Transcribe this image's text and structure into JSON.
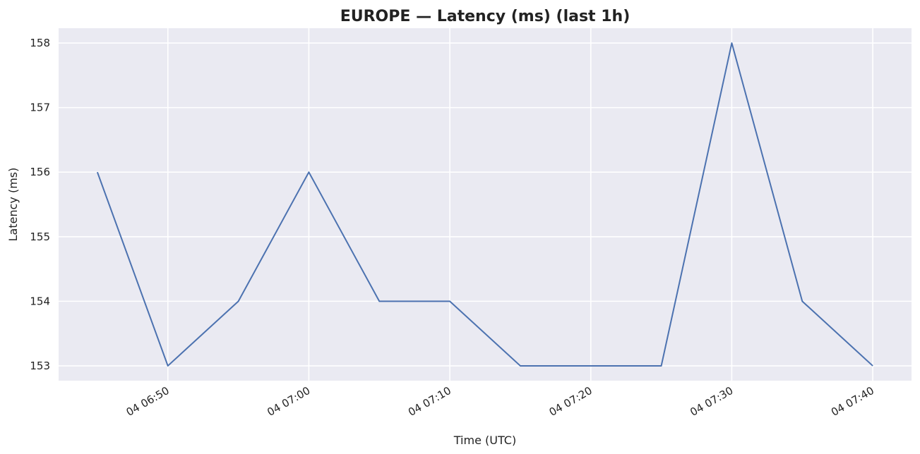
{
  "chart_data": {
    "type": "line",
    "title": "EUROPE — Latency (ms) (last 1h)",
    "xlabel": "Time (UTC)",
    "ylabel": "Latency (ms)",
    "x": [
      "04 06:45",
      "04 06:50",
      "04 06:55",
      "04 07:00",
      "04 07:05",
      "04 07:10",
      "04 07:15",
      "04 07:20",
      "04 07:25",
      "04 07:30",
      "04 07:35",
      "04 07:40"
    ],
    "series": [
      {
        "values": [
          156,
          153,
          154,
          156,
          154,
          154,
          153,
          153,
          153,
          158,
          154,
          153
        ]
      }
    ],
    "xticks": [
      "04 06:50",
      "04 07:00",
      "04 07:10",
      "04 07:20",
      "04 07:30",
      "04 07:40"
    ],
    "yticks": [
      "153",
      "154",
      "155",
      "156",
      "157",
      "158"
    ],
    "ylim": [
      152.77,
      158.23
    ],
    "grid": true,
    "background": "#eaeaf2",
    "grid_color": "#ffffff",
    "line_color": "#4c72b0"
  }
}
